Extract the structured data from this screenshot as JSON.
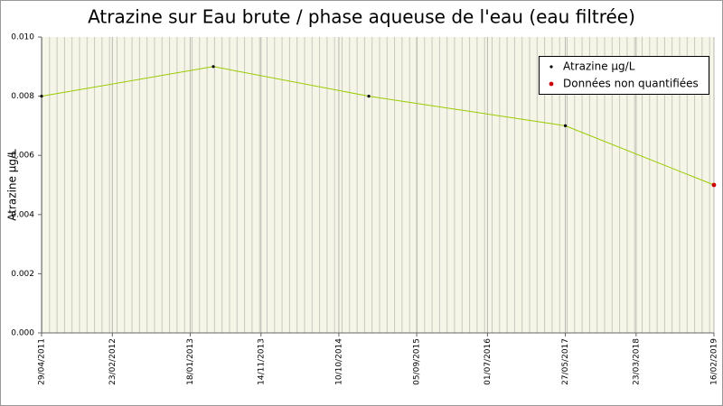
{
  "chart_data": {
    "type": "line",
    "title": "Atrazine sur Eau brute / phase aqueuse de l'eau (eau filtrée)",
    "y_label": "Atrazine µg/L",
    "x": [
      "29/04/2011",
      "26/04/2013",
      "14/02/2015",
      "27/05/2017",
      "16/02/2019"
    ],
    "series": [
      {
        "name": "Atrazine µg/L",
        "color": "#99cc00",
        "marker_color": "#000000",
        "values": [
          0.008,
          0.009,
          0.008,
          0.007,
          0.005
        ]
      },
      {
        "name": "Données non quantifiées",
        "color": "#cc0000",
        "values": [
          null,
          null,
          null,
          null,
          0.005
        ]
      }
    ],
    "xlim": [
      "29/04/2011",
      "16/02/2019"
    ],
    "xticks": [
      "29/04/2011",
      "23/02/2012",
      "18/01/2013",
      "14/11/2013",
      "10/10/2014",
      "05/09/2015",
      "01/07/2016",
      "27/05/2017",
      "23/03/2018",
      "16/02/2019"
    ],
    "ylim": [
      0,
      0.01
    ],
    "yticks": [
      {
        "value": 0,
        "label": "0.000"
      },
      {
        "value": 0.002,
        "label": "0.002"
      },
      {
        "value": 0.004,
        "label": "0.004"
      },
      {
        "value": 0.006,
        "label": "0.006"
      },
      {
        "value": 0.008,
        "label": "0.008"
      },
      {
        "value": 0.01,
        "label": "0.010"
      }
    ],
    "grid": true,
    "legend": "top-right"
  }
}
